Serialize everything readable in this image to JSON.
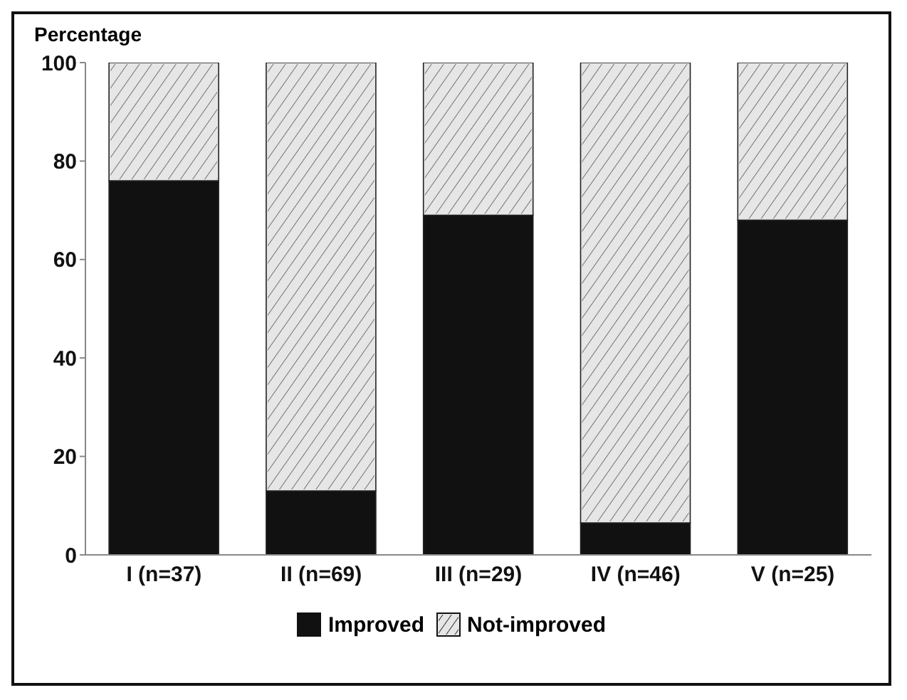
{
  "chart_data": {
    "type": "bar",
    "stacked": true,
    "ylabel": "Percentage",
    "categories": [
      "I (n=37)",
      "II (n=69)",
      "III (n=29)",
      "IV (n=46)",
      "V (n=25)"
    ],
    "series": [
      {
        "name": "Improved",
        "color": "#111111",
        "values": [
          76,
          13,
          69,
          6.5,
          68
        ]
      },
      {
        "name": "Not-improved",
        "color": "#e6e6e6",
        "values": [
          24,
          87,
          31,
          93.5,
          32
        ]
      }
    ],
    "ylim": [
      0,
      100
    ],
    "yticks": [
      0,
      20,
      40,
      60,
      80,
      100
    ],
    "grid": false,
    "legend": "bottom"
  }
}
